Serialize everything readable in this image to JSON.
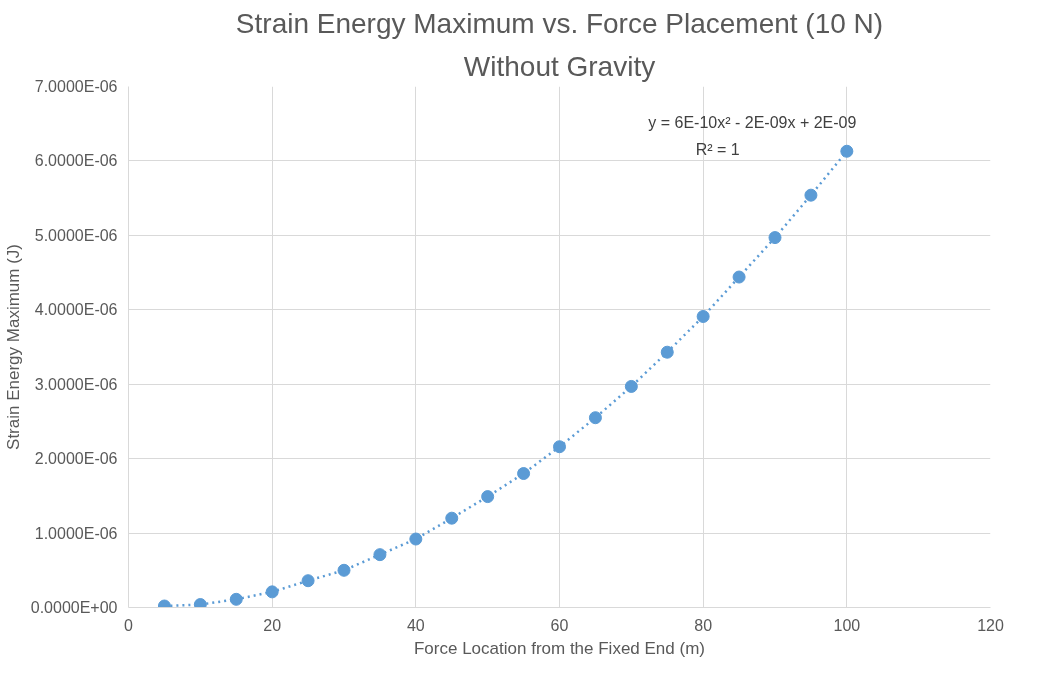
{
  "chart_data": {
    "type": "scatter",
    "title": "Strain Energy Maximum vs. Force Placement (10 N)",
    "subtitle": "Without Gravity",
    "xlabel": "Force Location from the Fixed End (m)",
    "ylabel": "Strain Energy Maximum (J)",
    "x": [
      5,
      10,
      15,
      20,
      25,
      30,
      35,
      40,
      45,
      50,
      55,
      60,
      65,
      70,
      75,
      80,
      85,
      90,
      95,
      100
    ],
    "series": [
      {
        "type": "line",
        "color": "#5b9bd5",
        "line_style": "dotted",
        "values": [
          2e-08,
          4e-08,
          1.1e-07,
          2.1e-07,
          3.6e-07,
          5e-07,
          7.1e-07,
          9.2e-07,
          1.2e-06,
          1.49e-06,
          1.8e-06,
          2.16e-06,
          2.55e-06,
          2.97e-06,
          3.43e-06,
          3.91e-06,
          4.44e-06,
          4.97e-06,
          5.54e-06,
          6.13e-06
        ]
      },
      {
        "color": "#5b9bd5",
        "marker": "circle",
        "values": [
          2e-08,
          4e-08,
          1.1e-07,
          2.1e-07,
          3.6e-07,
          5e-07,
          7.1e-07,
          9.2e-07,
          1.2e-06,
          1.49e-06,
          1.8e-06,
          2.16e-06,
          2.55e-06,
          2.97e-06,
          3.43e-06,
          3.91e-06,
          4.44e-06,
          4.97e-06,
          5.54e-06,
          6.13e-06
        ]
      }
    ],
    "xlim": [
      0,
      120
    ],
    "xticks": [
      0,
      20,
      40,
      60,
      80,
      100,
      120
    ],
    "ylim": [
      0,
      7e-06
    ],
    "yticks": [
      {
        "value": 0,
        "label": "0.0000E+00"
      },
      {
        "value": 1e-06,
        "label": "1.0000E-06"
      },
      {
        "value": 2e-06,
        "label": "2.0000E-06"
      },
      {
        "value": 3e-06,
        "label": "3.0000E-06"
      },
      {
        "value": 4e-06,
        "label": "4.0000E-06"
      },
      {
        "value": 5e-06,
        "label": "5.0000E-06"
      },
      {
        "value": 6e-06,
        "label": "6.0000E-06"
      },
      {
        "value": 7e-06,
        "label": "7.0000E-06"
      }
    ],
    "annotations": [
      "y = 6E-10x² - 2E-09x + 2E-09",
      "R² = 1"
    ],
    "grid": true
  }
}
